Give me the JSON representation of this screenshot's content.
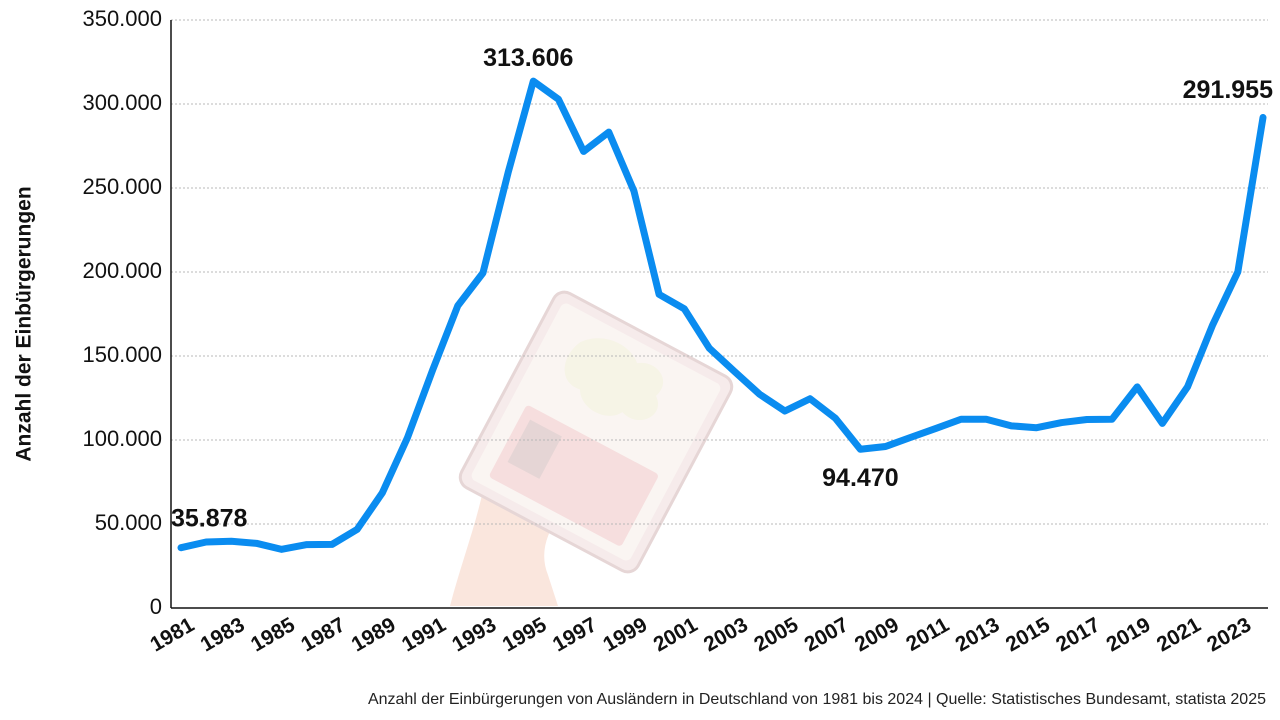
{
  "chart_data": {
    "type": "line",
    "ylabel": "Anzahl der Einbürgerungen",
    "caption": "Anzahl der Einbürgerungen von Ausländern in Deutschland von 1981 bis 2024 | Quelle: Statistisches Bundesamt, statista 2025",
    "ylim": [
      0,
      350000
    ],
    "yticks": [
      0,
      50000,
      100000,
      150000,
      200000,
      250000,
      300000,
      350000
    ],
    "ytick_labels": [
      "0",
      "50.000",
      "100.000",
      "150.000",
      "200.000",
      "250.000",
      "300.000",
      "350.000"
    ],
    "xtick_labels": [
      "1981",
      "1983",
      "1985",
      "1987",
      "1989",
      "1991",
      "1993",
      "1995",
      "1997",
      "1999",
      "2001",
      "2003",
      "2005",
      "2007",
      "2009",
      "2011",
      "2013",
      "2015",
      "2017",
      "2019",
      "2021",
      "2023"
    ],
    "grid": true,
    "line_color": "#0a8cf0",
    "series": [
      {
        "x": [
          1981,
          1982,
          1983,
          1984,
          1985,
          1986,
          1987,
          1988,
          1989,
          1990,
          1991,
          1992,
          1993,
          1994,
          1995,
          1996,
          1997,
          1998,
          1999,
          2000,
          2001,
          2002,
          2003,
          2004,
          2005,
          2006,
          2007,
          2008,
          2009,
          2010,
          2011,
          2012,
          2013,
          2014,
          2015,
          2016,
          2017,
          2018,
          2019,
          2020,
          2021,
          2022,
          2023,
          2024
        ],
        "values": [
          35878,
          39280,
          39709,
          38490,
          34913,
          37742,
          37835,
          46783,
          68526,
          101377,
          141630,
          179904,
          199443,
          259170,
          313606,
          302830,
          271775,
          283280,
          248206,
          186688,
          178098,
          154547,
          140731,
          127153,
          117241,
          124566,
          113030,
          94470,
          96122,
          101570,
          106897,
          112348,
          112353,
          108422,
          107317,
          110383,
          112211,
          112340,
          131600,
          109880,
          131595,
          168545,
          200095,
          291955
        ]
      }
    ],
    "annotations": [
      {
        "text": "35.878",
        "x": 1981,
        "y": 35878
      },
      {
        "text": "313.606",
        "x": 1995,
        "y": 313606
      },
      {
        "text": "94.470",
        "x": 2008,
        "y": 94470
      },
      {
        "text": "291.955",
        "x": 2024,
        "y": 291955
      }
    ]
  }
}
